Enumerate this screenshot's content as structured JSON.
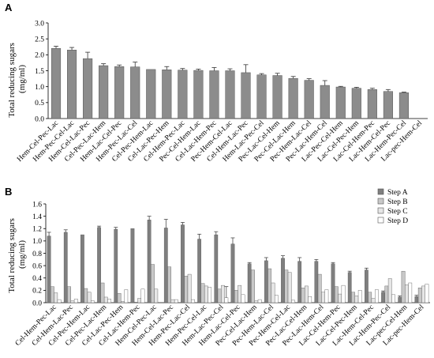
{
  "chart_data": [
    {
      "panel": "A",
      "type": "bar",
      "ylabel": "Total reducing sugars (mg/ml)",
      "ylabel_lines": [
        "Total reducing sugars",
        "(mg/ml)"
      ],
      "ylim": [
        0,
        3.0
      ],
      "yticks": [
        "0.0",
        "0.5",
        "1.0",
        "1.5",
        "2.0",
        "2.5",
        "3.0"
      ],
      "grid": false,
      "categories": [
        "Hem-Cel-Pec-Lac",
        "Hem-Pec-Cel-Lac",
        "Hem-Cel-Lac-Pec",
        "Cel-Pec-Lac-Hem",
        "Hem-Lac-Cel-Pec",
        "Hem-Pec-Lac-Cel",
        "Cel-Pec-Hem-Lac",
        "Cel-Lac-Pec-Hem",
        "Cel-Hem-Pec-Lac",
        "Pec-Cel-Hem-Lac",
        "Cel-Lac-Hem-Pec",
        "Pec-Hem-Cel-Lac",
        "Cel-Hem-Lac-Pec",
        "Hem-Lac-Pec-Cel",
        "Pec-Lac-Cel-Hem",
        "Pec-Cel-Lac-Hem",
        "Pec-Hem-Lac-Cel",
        "Pec-Lac-Hem-Cel",
        "Lac-Pec-Cel-Hem",
        "Lac-Cel-Pec-Hem",
        "Lac-Cel-Hem-Pec",
        "Lac-Hem-Cel-Pec",
        "Lac-Hem-Pec-Cel",
        "Lac-pec-Hem-Cel"
      ],
      "values": [
        2.2,
        2.15,
        1.88,
        1.66,
        1.63,
        1.62,
        1.54,
        1.53,
        1.52,
        1.51,
        1.5,
        1.5,
        1.44,
        1.37,
        1.35,
        1.26,
        1.2,
        1.04,
        0.99,
        0.95,
        0.91,
        0.85,
        0.81,
        0.0
      ],
      "errors": [
        0.07,
        0.08,
        0.2,
        0.06,
        0.05,
        0.15,
        0.0,
        0.1,
        0.05,
        0.04,
        0.1,
        0.06,
        0.25,
        0.04,
        0.07,
        0.06,
        0.05,
        0.15,
        0.02,
        0.03,
        0.04,
        0.06,
        0.02,
        0.0
      ],
      "colors": {
        "bar": "#8c8c8c"
      }
    },
    {
      "panel": "B",
      "type": "bar",
      "ylabel": "Total reducing sugars (mg/ml)",
      "ylabel_lines": [
        "Total reducing sugars",
        "(mg/ml)"
      ],
      "ylim": [
        0,
        1.6
      ],
      "yticks": [
        "0.0",
        "0.2",
        "0.4",
        "0.6",
        "0.8",
        "1.0",
        "1.2",
        "1.4",
        "1.6"
      ],
      "grid": false,
      "legend_position": "top-right",
      "categories": [
        "Cel-Hem-Pec-Lac",
        "Cel-Hem-Lac-Pec",
        "Cel-Pec-Hem-Lac",
        "Cel-Pec-Lac-Hem",
        "Cel-Lac-Pec-Hem",
        "Cel-Lac-Hem-Pec",
        "Hem-Cel-Pec-Lac",
        "Hem-Cel-Lac-Pec",
        "Hem-Pec-Lac-Cel",
        "Hem-Pec-Cel-Lac",
        "Hem-Lac-Pec-Cel",
        "Hem-Lac-Cel-Pec",
        "Pec-Cel-Lac-Hem",
        "Pec-Hem-Lac-Cel",
        "Pec-Hem-Cel-Lac",
        "Pec-Lac-Cel-Hem",
        "Pec-Lac-Hem-Cel",
        "Lac-Cel-Hem-Pec",
        "Lac-Cel-Pec-Hem",
        "Lac-Hem-Cel-Pec",
        "Lac-Hem-Pec-Cel",
        "Lac-pec-Cel-Hem",
        "Lac-pec-Hem-Cel"
      ],
      "series": [
        {
          "name": "Step A",
          "color": "#7f7f7f",
          "values": [
            1.08,
            1.14,
            1.1,
            1.22,
            1.19,
            1.2,
            1.34,
            1.21,
            1.26,
            1.03,
            1.1,
            0.95,
            0.63,
            0.68,
            0.72,
            0.67,
            0.67,
            0.63,
            0.49,
            0.53,
            0.17,
            0.09,
            0.1
          ],
          "errors": [
            0.06,
            0.04,
            0.0,
            0.02,
            0.03,
            0.0,
            0.06,
            0.14,
            0.04,
            0.08,
            0.05,
            0.1,
            0.02,
            0.05,
            0.04,
            0.06,
            0.03,
            0.02,
            0.02,
            0.03,
            0.02,
            0.02,
            0.02
          ]
        },
        {
          "name": "Step B",
          "color": "#c8c8c8",
          "values": [
            0.26,
            0.26,
            0.23,
            0.32,
            0.15,
            0.01,
            0.62,
            0.58,
            0.43,
            0.31,
            0.22,
            0.2,
            0.53,
            0.55,
            0.53,
            0.24,
            0.46,
            0.26,
            0.17,
            0.17,
            0.27,
            0.51,
            0.24
          ]
        },
        {
          "name": "Step C",
          "color": "#e6e6e6",
          "values": [
            0.16,
            0.03,
            0.17,
            0.09,
            0.02,
            0.07,
            0.22,
            0.05,
            0.46,
            0.27,
            0.28,
            0.28,
            0.03,
            0.32,
            0.49,
            0.27,
            0.17,
            0.14,
            0.11,
            0.07,
            0.39,
            0.29,
            0.27
          ]
        },
        {
          "name": "Step D",
          "color": "#ffffff",
          "values": [
            0.05,
            0.06,
            0.03,
            0.06,
            0.21,
            0.22,
            0.0,
            0.05,
            0.05,
            0.25,
            0.08,
            0.13,
            0.05,
            0.12,
            0.04,
            0.1,
            0.21,
            0.28,
            0.2,
            0.21,
            0.13,
            0.32,
            0.3
          ],
          "errors": [
            0.0,
            0.0,
            0.0,
            0.0,
            0.0,
            0.0,
            0.0,
            0.0,
            0.0,
            0.0,
            0.18,
            0.0,
            0.0,
            0.0,
            0.0,
            0.0,
            0.0,
            0.0,
            0.0,
            0.0,
            0.0,
            0.0,
            0.0
          ]
        }
      ]
    }
  ]
}
